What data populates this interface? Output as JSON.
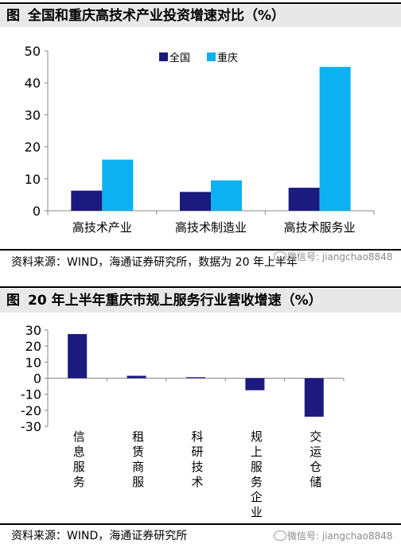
{
  "figure1": {
    "label": "图",
    "title": "全国和重庆高技术产业投资增速对比（%）",
    "source": "资料来源：WIND，海通证券研究所，数据为 20 年上半年",
    "watermark": "微信号: jiangchao8848"
  },
  "figure2": {
    "label": "图",
    "title": "20 年上半年重庆市规上服务行业营收增速（%）",
    "source": "资料来源：WIND，海通证券研究所",
    "watermark": "微信号: jiangchao8848"
  },
  "colors": {
    "navy": "#1c1a7e",
    "cyan": "#0cb1f1",
    "axis": "#888888",
    "title_bg": "#e8e8e8"
  },
  "chart_data": [
    {
      "type": "bar",
      "title": "",
      "categories": [
        "高技术产业",
        "高技术制造业",
        "高技术服务业"
      ],
      "series": [
        {
          "name": "全国",
          "values": [
            6.3,
            5.9,
            7.2
          ]
        },
        {
          "name": "重庆",
          "values": [
            16.0,
            9.5,
            45.0
          ]
        }
      ],
      "ylim": [
        0,
        50
      ],
      "yticks": [
        0,
        10,
        20,
        30,
        40,
        50
      ],
      "legend": "top-center",
      "grid": false
    },
    {
      "type": "bar",
      "title": "",
      "categories": [
        "信息服务",
        "租赁商服",
        "科研技术",
        "规上服务企业",
        "交运仓储"
      ],
      "series": [
        {
          "values": [
            27.5,
            1.5,
            0.6,
            -7.5,
            -24.0
          ]
        }
      ],
      "ylim": [
        -30,
        30
      ],
      "yticks": [
        30,
        20,
        10,
        0,
        -10,
        -20,
        -30
      ],
      "legend": "none",
      "grid": false
    }
  ]
}
